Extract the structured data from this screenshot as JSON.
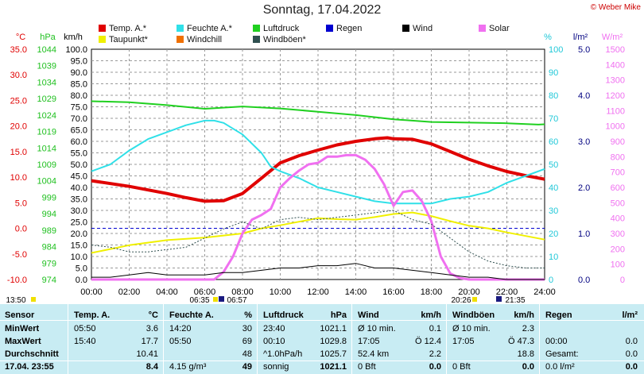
{
  "title": "Sonntag, 17.04.2022",
  "credit": "© Weber Mike",
  "legend": [
    {
      "label": "Temp. A.*",
      "color": "#e00000"
    },
    {
      "label": "Feuchte A.*",
      "color": "#30e0e8"
    },
    {
      "label": "Luftdruck",
      "color": "#20d020"
    },
    {
      "label": "Regen",
      "color": "#0000d0"
    },
    {
      "label": "Wind",
      "color": "#000000"
    },
    {
      "label": "Solar",
      "color": "#f070f0"
    },
    {
      "label": "Taupunkt*",
      "color": "#f0f000"
    },
    {
      "label": "Windchill",
      "color": "#f07000"
    },
    {
      "label": "Windböen*",
      "color": "#305050"
    }
  ],
  "axes_units": {
    "temp": "°C",
    "pressure": "hPa",
    "wind": "km/h",
    "humidity": "%",
    "rain": "l/m²",
    "solar": "W/m²"
  },
  "time_labels": {
    "left": "13:50",
    "sunrise": "06:35",
    "sunrise2": "06:57",
    "sunset": "20:26",
    "sunset2": "21:35"
  },
  "chart_data": {
    "type": "line",
    "x_label": "hour",
    "x_ticks": [
      "00:00",
      "02:00",
      "04:00",
      "06:00",
      "08:00",
      "10:00",
      "12:00",
      "14:00",
      "16:00",
      "18:00",
      "20:00",
      "22:00",
      "24:00"
    ],
    "y_axes": {
      "temp_c": {
        "min": -10.0,
        "max": 35.0,
        "ticks": [
          "35.0",
          "30.0",
          "25.0",
          "20.0",
          "15.0",
          "10.0",
          "5.0",
          "0.0",
          "-5.0",
          "-10.0"
        ],
        "color": "#e00000"
      },
      "pressure_hpa": {
        "min": 974,
        "max": 1044,
        "ticks": [
          "1044",
          "1039",
          "1034",
          "1029",
          "1024",
          "1019",
          "1014",
          "1009",
          "1004",
          "999",
          "994",
          "989",
          "984",
          "979",
          "974"
        ],
        "color": "#20c020"
      },
      "wind_kmh": {
        "min": 0.0,
        "max": 100.0,
        "ticks": [
          "100.0",
          "95.0",
          "90.0",
          "85.0",
          "80.0",
          "75.0",
          "70.0",
          "65.0",
          "60.0",
          "55.0",
          "50.0",
          "45.0",
          "40.0",
          "35.0",
          "30.0",
          "25.0",
          "20.0",
          "15.0",
          "10.0",
          "5.0",
          "0.0"
        ],
        "color": "#000000"
      },
      "humidity_pct": {
        "min": 0,
        "max": 100,
        "ticks": [
          "100",
          "90",
          "80",
          "70",
          "60",
          "50",
          "40",
          "30",
          "20",
          "10",
          "0"
        ],
        "color": "#20c8d8"
      },
      "rain_lm2": {
        "min": 0.0,
        "max": 5.0,
        "ticks": [
          "5.0",
          "4.0",
          "3.0",
          "2.0",
          "1.0",
          "0.0"
        ],
        "color": "#000080"
      },
      "solar_wm2": {
        "min": 0,
        "max": 1500,
        "ticks": [
          "1500",
          "1400",
          "1300",
          "1200",
          "1100",
          "1000",
          "900",
          "800",
          "700",
          "600",
          "500",
          "400",
          "300",
          "200",
          "100",
          "0"
        ],
        "color": "#f070f0"
      }
    },
    "series": [
      {
        "name": "Temp. A.*",
        "axis": "temp_c",
        "color": "#e00000",
        "width": 4,
        "x": [
          0,
          2,
          4,
          5,
          6,
          7,
          8,
          9,
          10,
          11,
          12,
          13,
          14,
          15,
          15.67,
          16,
          17,
          18,
          19,
          20,
          21,
          22,
          23,
          24
        ],
        "y": [
          9.3,
          8.2,
          6.8,
          6.0,
          5.3,
          5.4,
          6.8,
          9.8,
          12.8,
          14.2,
          15.3,
          16.3,
          17.0,
          17.5,
          17.7,
          17.5,
          17.4,
          16.5,
          15.0,
          13.5,
          12.2,
          11.1,
          10.3,
          9.6
        ]
      },
      {
        "name": "Feuchte A.*",
        "axis": "humidity_pct",
        "color": "#30e0e8",
        "width": 2,
        "x": [
          0,
          1,
          2,
          3,
          4,
          5,
          6,
          6.5,
          7,
          8,
          9,
          9.5,
          10,
          11,
          12,
          13,
          14,
          15,
          16,
          17,
          18,
          19,
          20,
          21,
          22,
          23,
          24
        ],
        "y": [
          47,
          50,
          56,
          61,
          64,
          67,
          69,
          69,
          68,
          63,
          55,
          49,
          47,
          44,
          40,
          38,
          36,
          34,
          33,
          33,
          33,
          35,
          36,
          38,
          42,
          45,
          48
        ]
      },
      {
        "name": "Luftdruck",
        "axis": "pressure_hpa",
        "color": "#20d020",
        "width": 2,
        "x": [
          0,
          2,
          4,
          6,
          8,
          10,
          12,
          14,
          16,
          18,
          20,
          22,
          23.67,
          24
        ],
        "y": [
          1028.2,
          1027.9,
          1027.0,
          1025.9,
          1026.6,
          1026.0,
          1025.0,
          1024.0,
          1022.7,
          1021.9,
          1021.7,
          1021.5,
          1021.1,
          1021.2
        ]
      },
      {
        "name": "Taupunkt*",
        "axis": "temp_c",
        "color": "#f0f000",
        "width": 2,
        "x": [
          0,
          2,
          4,
          6,
          8,
          9,
          10,
          11,
          12,
          13,
          14,
          15,
          16,
          17,
          18,
          19,
          20,
          21,
          22,
          23,
          24
        ],
        "y": [
          -4.8,
          -3.3,
          -2.3,
          -1.8,
          -1.0,
          0.0,
          0.6,
          1.3,
          2.0,
          1.8,
          1.7,
          2.2,
          2.8,
          3.1,
          2.4,
          1.4,
          0.5,
          0.0,
          -0.8,
          -1.5,
          -2.2
        ]
      },
      {
        "name": "Solar",
        "axis": "solar_wm2",
        "color": "#f070f0",
        "width": 3,
        "x": [
          0,
          6.5,
          7,
          7.5,
          8,
          8.5,
          9,
          9.5,
          10,
          10.5,
          11,
          11.5,
          12,
          12.5,
          13,
          13.5,
          14,
          14.5,
          15,
          15.5,
          16,
          16.5,
          17,
          17.5,
          18,
          18.5,
          19,
          19.5,
          20,
          24
        ],
        "y": [
          0,
          0,
          50,
          150,
          300,
          390,
          420,
          460,
          600,
          660,
          710,
          750,
          760,
          800,
          800,
          810,
          810,
          780,
          720,
          620,
          480,
          570,
          580,
          510,
          380,
          150,
          40,
          10,
          0,
          0
        ]
      },
      {
        "name": "Windböen*",
        "axis": "wind_kmh",
        "color": "#305050",
        "width": 1,
        "dash": "2,2",
        "x": [
          0,
          1,
          2,
          3,
          4,
          5,
          6,
          7,
          8,
          9,
          10,
          11,
          12,
          13,
          14,
          15,
          16,
          17,
          18,
          19,
          20,
          21,
          22,
          23,
          24
        ],
        "y": [
          15,
          14,
          12,
          12,
          13,
          14,
          18,
          22,
          25,
          22,
          26,
          27,
          26,
          27,
          28,
          29,
          30,
          26,
          24,
          18,
          12,
          8,
          6,
          5,
          5
        ]
      },
      {
        "name": "Wind",
        "axis": "wind_kmh",
        "color": "#000000",
        "width": 1,
        "x": [
          0,
          1,
          2,
          3,
          4,
          5,
          6,
          7,
          8,
          9,
          10,
          11,
          12,
          13,
          14,
          15,
          16,
          17,
          18,
          19,
          20,
          21,
          22,
          23,
          24
        ],
        "y": [
          1,
          1,
          2,
          3,
          2,
          2,
          2,
          3,
          3,
          4,
          5,
          5,
          6,
          6,
          7,
          5,
          5,
          4,
          3,
          2,
          1,
          1,
          0,
          0,
          0
        ]
      }
    ]
  },
  "stats": {
    "headers": [
      {
        "label": "Sensor",
        "unit": ""
      },
      {
        "label": "Temp. A.",
        "unit": "°C"
      },
      {
        "label": "Feuchte A.",
        "unit": "%"
      },
      {
        "label": "Luftdruck",
        "unit": "hPa"
      },
      {
        "label": "Wind",
        "unit": "km/h"
      },
      {
        "label": "Windböen",
        "unit": "km/h"
      },
      {
        "label": "Regen",
        "unit": "l/m²"
      }
    ],
    "rows": [
      {
        "label": "MinWert",
        "cells": [
          [
            "05:50",
            "3.6"
          ],
          [
            "14:20",
            "30"
          ],
          [
            "23:40",
            "1021.1"
          ],
          [
            "Ø 10 min.",
            "0.1"
          ],
          [
            "Ø 10 min.",
            "2.3"
          ],
          [
            "",
            ""
          ]
        ]
      },
      {
        "label": "MaxWert",
        "cells": [
          [
            "15:40",
            "17.7"
          ],
          [
            "05:50",
            "69"
          ],
          [
            "00:10",
            "1029.8"
          ],
          [
            "17:05",
            "Ö 12.4"
          ],
          [
            "17:05",
            "Ö 47.3"
          ],
          [
            "00:00",
            "0.0"
          ]
        ]
      },
      {
        "label": "Durchschnitt",
        "cells": [
          [
            "",
            "10.41"
          ],
          [
            "",
            "48"
          ],
          [
            "^1.0hPa/h",
            "1025.7"
          ],
          [
            "52.4 km",
            "2.2"
          ],
          [
            "",
            "18.8"
          ],
          [
            "Gesamt:",
            "0.0"
          ]
        ]
      },
      {
        "label": "17.04. 23:55",
        "cells": [
          [
            "",
            "8.4"
          ],
          [
            "4.15 g/m³",
            "49"
          ],
          [
            "sonnig",
            "1021.1"
          ],
          [
            "0 Bft",
            "0.0"
          ],
          [
            "0 Bft",
            "0.0"
          ],
          [
            "0.0 l/m²",
            "0.0"
          ]
        ]
      }
    ]
  }
}
